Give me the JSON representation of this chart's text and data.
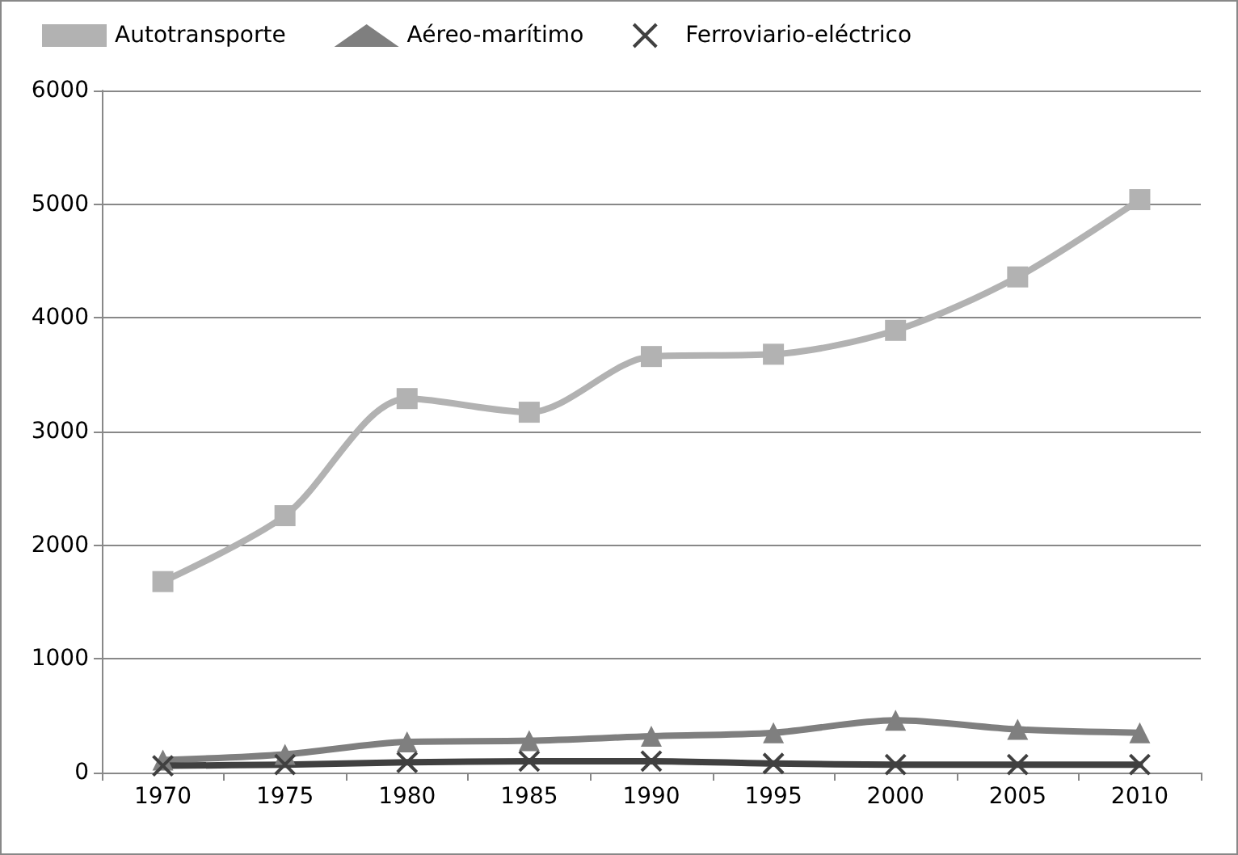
{
  "chart_data": {
    "type": "line",
    "categories": [
      "1970",
      "1975",
      "1980",
      "1985",
      "1990",
      "1995",
      "2000",
      "2005",
      "2010"
    ],
    "series": [
      {
        "name": "Autotransporte",
        "color": "#b2b2b2",
        "marker": "square",
        "values": [
          1680,
          2260,
          3290,
          3170,
          3660,
          3680,
          3890,
          4360,
          5040
        ]
      },
      {
        "name": "Aéreo-marítimo",
        "color": "#7f7f7f",
        "marker": "triangle",
        "values": [
          110,
          160,
          270,
          280,
          320,
          350,
          460,
          380,
          350
        ]
      },
      {
        "name": "Ferroviario-eléctrico",
        "color": "#404040",
        "marker": "cross",
        "values": [
          60,
          70,
          90,
          100,
          100,
          80,
          70,
          70,
          70
        ]
      }
    ],
    "ylim": [
      0,
      6000
    ],
    "yticks": [
      0,
      1000,
      2000,
      3000,
      4000,
      5000,
      6000
    ],
    "grid": "y",
    "legend": "top left"
  }
}
